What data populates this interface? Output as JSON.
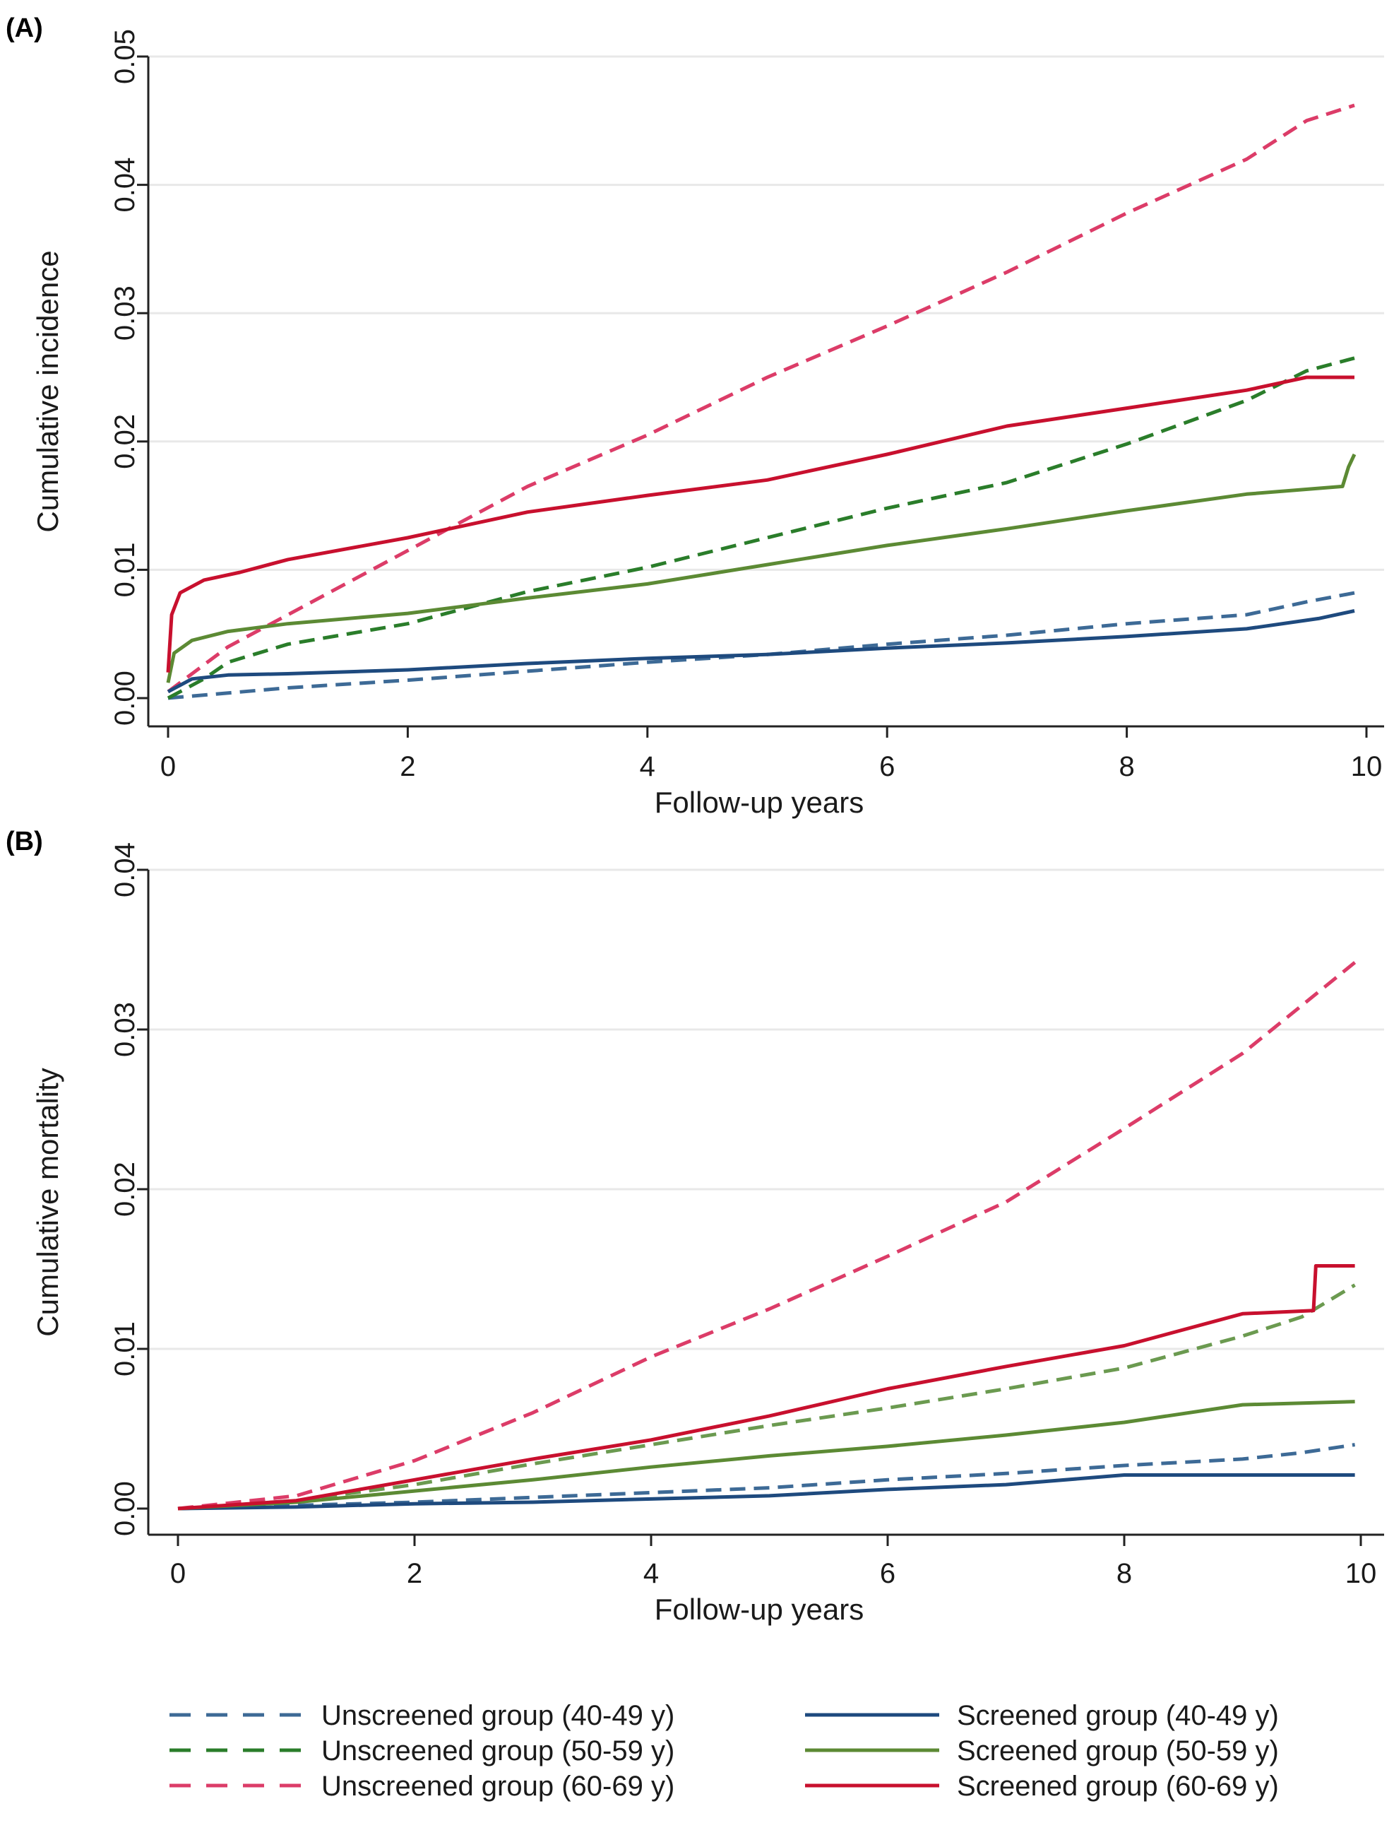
{
  "chart_data": [
    {
      "type": "line",
      "panel_label": "(A)",
      "xlabel": "Follow-up years",
      "ylabel": "Cumulative incidence",
      "xlim": [
        0,
        10
      ],
      "ylim": [
        0,
        0.05
      ],
      "x_ticks": [
        0,
        2,
        4,
        6,
        8,
        10
      ],
      "y_ticks": [
        0,
        0.01,
        0.02,
        0.03,
        0.04,
        0.05
      ],
      "y_tick_labels": [
        "0.00",
        "0.01",
        "0.02",
        "0.03",
        "0.04",
        "0.05"
      ],
      "grid": "horizontal",
      "series": [
        {
          "name": "Unscreened group (40-49 y)",
          "color": "#3d6a96",
          "dash": "dashed",
          "x": [
            0,
            1,
            2,
            3,
            4,
            5,
            6,
            7,
            8,
            9,
            9.5,
            9.9
          ],
          "y": [
            0,
            0.0008,
            0.0014,
            0.0021,
            0.0028,
            0.0034,
            0.0042,
            0.0049,
            0.0058,
            0.0065,
            0.0075,
            0.0082
          ]
        },
        {
          "name": "Unscreened group (50-59 y)",
          "color": "#2a7d2a",
          "dash": "dashed",
          "x": [
            0,
            0.3,
            0.5,
            1,
            2,
            3,
            4,
            5,
            6,
            7,
            8,
            9,
            9.5,
            9.9
          ],
          "y": [
            0,
            0.0015,
            0.0028,
            0.0042,
            0.0058,
            0.0083,
            0.0102,
            0.0125,
            0.0148,
            0.0168,
            0.0198,
            0.0232,
            0.0255,
            0.0265
          ]
        },
        {
          "name": "Unscreened group (60-69 y)",
          "color": "#dc3c68",
          "dash": "dashed",
          "x": [
            0,
            0.5,
            1,
            2,
            3,
            4,
            5,
            6,
            7,
            8,
            9,
            9.5,
            9.9
          ],
          "y": [
            0.0005,
            0.004,
            0.0065,
            0.0115,
            0.0165,
            0.0205,
            0.025,
            0.029,
            0.0332,
            0.0378,
            0.042,
            0.045,
            0.0462
          ]
        },
        {
          "name": "Screened group (40-49 y)",
          "color": "#1e4a7e",
          "dash": "solid",
          "x": [
            0,
            0.2,
            0.5,
            1,
            2,
            3,
            4,
            5,
            6,
            7,
            8,
            9,
            9.6,
            9.9
          ],
          "y": [
            0.0005,
            0.0015,
            0.0018,
            0.0019,
            0.0022,
            0.0027,
            0.0031,
            0.0034,
            0.0039,
            0.0043,
            0.0048,
            0.0054,
            0.0062,
            0.0068
          ]
        },
        {
          "name": "Screened group (50-59 y)",
          "color": "#5c8a34",
          "dash": "solid",
          "x": [
            0,
            0.05,
            0.2,
            0.5,
            1,
            2,
            3,
            4,
            5,
            6,
            7,
            8,
            9,
            9.8,
            9.85,
            9.9
          ],
          "y": [
            0.0012,
            0.0035,
            0.0045,
            0.0052,
            0.0058,
            0.0066,
            0.0078,
            0.0089,
            0.0104,
            0.0119,
            0.0132,
            0.0146,
            0.0159,
            0.0165,
            0.018,
            0.019
          ]
        },
        {
          "name": "Screened group (60-69 y)",
          "color": "#c8102e",
          "dash": "solid",
          "x": [
            0,
            0.03,
            0.1,
            0.3,
            0.6,
            1,
            2,
            3,
            4,
            5,
            6,
            7,
            8,
            9,
            9.5,
            9.9
          ],
          "y": [
            0.002,
            0.0065,
            0.0082,
            0.0092,
            0.0098,
            0.0108,
            0.0125,
            0.0145,
            0.0158,
            0.017,
            0.019,
            0.0212,
            0.0226,
            0.024,
            0.025,
            0.025
          ]
        }
      ]
    },
    {
      "type": "line",
      "panel_label": "(B)",
      "xlabel": "Follow-up years",
      "ylabel": "Cumulative mortality",
      "xlim": [
        0,
        10
      ],
      "ylim": [
        0,
        0.04
      ],
      "x_ticks": [
        0,
        2,
        4,
        6,
        8,
        10
      ],
      "y_ticks": [
        0,
        0.01,
        0.02,
        0.03,
        0.04
      ],
      "y_tick_labels": [
        "0.00",
        "0.01",
        "0.02",
        "0.03",
        "0.04"
      ],
      "grid": "horizontal",
      "series": [
        {
          "name": "Unscreened group (40-49 y)",
          "color": "#3d6a96",
          "dash": "dashed",
          "x": [
            0,
            1,
            2,
            3,
            4,
            5,
            6,
            7,
            8,
            9,
            9.5,
            9.95
          ],
          "y": [
            0,
            0.0002,
            0.0004,
            0.0007,
            0.001,
            0.0013,
            0.0018,
            0.0022,
            0.0027,
            0.0031,
            0.0035,
            0.004
          ]
        },
        {
          "name": "Unscreened group (50-59 y)",
          "color": "#6b9a50",
          "dash": "dashed",
          "x": [
            0,
            1,
            2,
            3,
            4,
            5,
            6,
            7,
            8,
            9,
            9.5,
            9.95
          ],
          "y": [
            0,
            0.0005,
            0.0015,
            0.0028,
            0.004,
            0.0052,
            0.0063,
            0.0075,
            0.0088,
            0.0108,
            0.012,
            0.014
          ]
        },
        {
          "name": "Unscreened group (60-69 y)",
          "color": "#dc3c68",
          "dash": "dashed",
          "x": [
            0,
            1,
            2,
            3,
            4,
            5,
            6,
            7,
            8,
            9,
            9.5,
            9.95
          ],
          "y": [
            0,
            0.0008,
            0.003,
            0.006,
            0.0095,
            0.0125,
            0.0158,
            0.0192,
            0.0238,
            0.0285,
            0.0315,
            0.0342
          ]
        },
        {
          "name": "Screened group (40-49 y)",
          "color": "#1e4a7e",
          "dash": "solid",
          "x": [
            0,
            1,
            2,
            3,
            4,
            5,
            6,
            7,
            8,
            9,
            9.95
          ],
          "y": [
            0,
            0.0001,
            0.0003,
            0.0004,
            0.0006,
            0.0008,
            0.0012,
            0.0015,
            0.0021,
            0.0021,
            0.0021
          ]
        },
        {
          "name": "Screened group (50-59 y)",
          "color": "#5c8a34",
          "dash": "solid",
          "x": [
            0,
            1,
            2,
            3,
            4,
            5,
            6,
            7,
            8,
            9,
            9.95
          ],
          "y": [
            0,
            0.0004,
            0.0011,
            0.0018,
            0.0026,
            0.0033,
            0.0039,
            0.0046,
            0.0054,
            0.0065,
            0.0067
          ]
        },
        {
          "name": "Screened group (60-69 y)",
          "color": "#c8102e",
          "dash": "solid",
          "x": [
            0,
            1,
            2,
            3,
            4,
            5,
            6,
            7,
            8,
            9,
            9.6,
            9.62,
            9.95
          ],
          "y": [
            0,
            0.0005,
            0.0018,
            0.0031,
            0.0043,
            0.0058,
            0.0075,
            0.0089,
            0.0102,
            0.0122,
            0.0124,
            0.0152,
            0.0152
          ]
        }
      ]
    }
  ],
  "legend": {
    "placement": "bottom",
    "items": [
      {
        "label": "Unscreened group (40-49 y)",
        "color": "#3d6a96",
        "dash": "dashed"
      },
      {
        "label": "Screened group (40-49 y)",
        "color": "#1e4a7e",
        "dash": "solid"
      },
      {
        "label": "Unscreened group (50-59 y)",
        "color": "#2a7d2a",
        "dash": "dashed"
      },
      {
        "label": "Screened group (50-59 y)",
        "color": "#5c8a34",
        "dash": "solid"
      },
      {
        "label": "Unscreened group (60-69 y)",
        "color": "#dc3c68",
        "dash": "dashed"
      },
      {
        "label": "Screened group (60-69 y)",
        "color": "#c8102e",
        "dash": "solid"
      }
    ]
  }
}
